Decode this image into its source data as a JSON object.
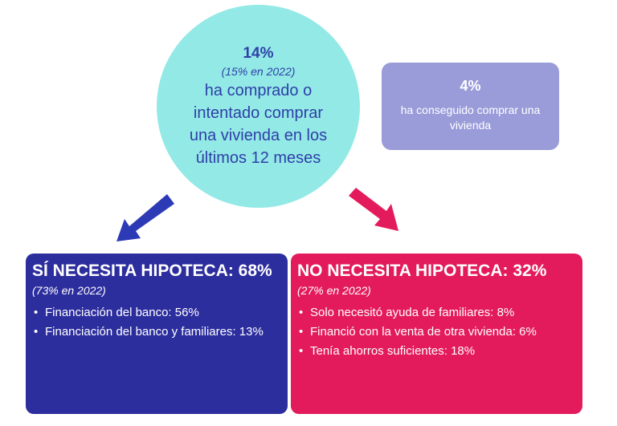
{
  "center": {
    "percent": "14%",
    "previous": "(15% en 2022)",
    "description": "ha comprado o intentado comprar una vivienda en los últimos 12 meses"
  },
  "side": {
    "percent": "4%",
    "description": "ha conseguido comprar una vivienda"
  },
  "left": {
    "title": "SÍ NECESITA HIPOTECA: 68%",
    "previous": "(73% en 2022)",
    "items": [
      "Financiación del banco: 56%",
      "Financiación del banco y familiares: 13%"
    ]
  },
  "right": {
    "title": "NO NECESITA HIPOTECA: 32%",
    "previous": "(27% en 2022)",
    "items": [
      "Solo necesitó ayuda de familiares: 8%",
      "Financió con la venta de otra vivienda: 6%",
      "Tenía ahorros suficientes: 18%"
    ]
  },
  "colors": {
    "circle": "#93e9e6",
    "side_box": "#9a9cd9",
    "left_box": "#2d2e9e",
    "right_box": "#e31b5c",
    "left_arrow": "#2d3ab5",
    "right_arrow": "#e31b5c"
  },
  "bullet_glyph": "•"
}
